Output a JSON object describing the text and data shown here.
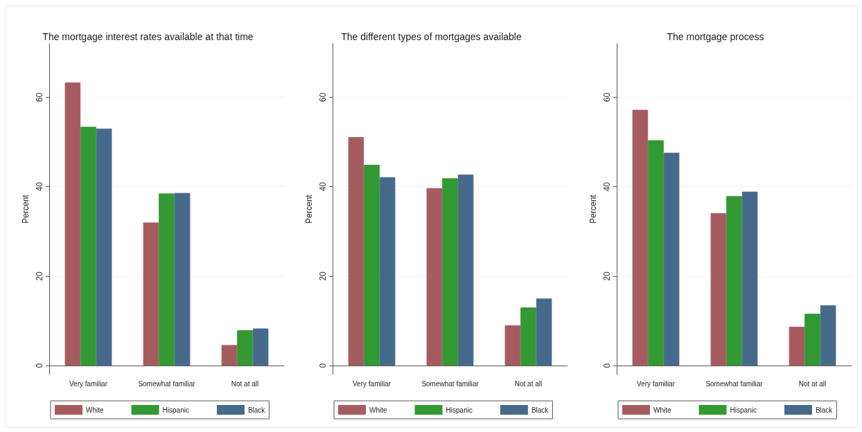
{
  "chart_data": [
    {
      "type": "bar",
      "title": "The mortgage interest rates available at that time",
      "ylabel": "Percent",
      "categories": [
        "Very familiar",
        "Somewhat familiar",
        "Not at all"
      ],
      "series": [
        {
          "name": "White",
          "color": "#a65c5f",
          "values": [
            63.3,
            32.0,
            4.6
          ]
        },
        {
          "name": "Hispanic",
          "color": "#339933",
          "values": [
            53.4,
            38.5,
            7.9
          ]
        },
        {
          "name": "Black",
          "color": "#466a8c",
          "values": [
            53.0,
            38.6,
            8.3
          ]
        }
      ],
      "ylim": [
        -2,
        72
      ],
      "yticks": [
        0,
        20,
        40,
        60
      ],
      "grid": "y",
      "legend": "bottom"
    },
    {
      "type": "bar",
      "title": "The different types of mortgages available",
      "ylabel": "Percent",
      "categories": [
        "Very familiar",
        "Somewhat familiar",
        "Not at all"
      ],
      "series": [
        {
          "name": "White",
          "color": "#a65c5f",
          "values": [
            51.1,
            39.7,
            9.0
          ]
        },
        {
          "name": "Hispanic",
          "color": "#339933",
          "values": [
            44.9,
            41.9,
            13.0
          ]
        },
        {
          "name": "Black",
          "color": "#466a8c",
          "values": [
            42.1,
            42.7,
            15.0
          ]
        }
      ],
      "ylim": [
        -2,
        72
      ],
      "yticks": [
        0,
        20,
        40,
        60
      ],
      "grid": "y",
      "legend": "bottom"
    },
    {
      "type": "bar",
      "title": "The mortgage process",
      "ylabel": "Percent",
      "categories": [
        "Very familiar",
        "Somewhat familiar",
        "Not at all"
      ],
      "series": [
        {
          "name": "White",
          "color": "#a65c5f",
          "values": [
            57.2,
            34.1,
            8.7
          ]
        },
        {
          "name": "Hispanic",
          "color": "#339933",
          "values": [
            50.4,
            37.9,
            11.6
          ]
        },
        {
          "name": "Black",
          "color": "#466a8c",
          "values": [
            47.6,
            38.9,
            13.5
          ]
        }
      ],
      "ylim": [
        -2,
        72
      ],
      "yticks": [
        0,
        20,
        40,
        60
      ],
      "grid": "y",
      "legend": "bottom"
    }
  ]
}
